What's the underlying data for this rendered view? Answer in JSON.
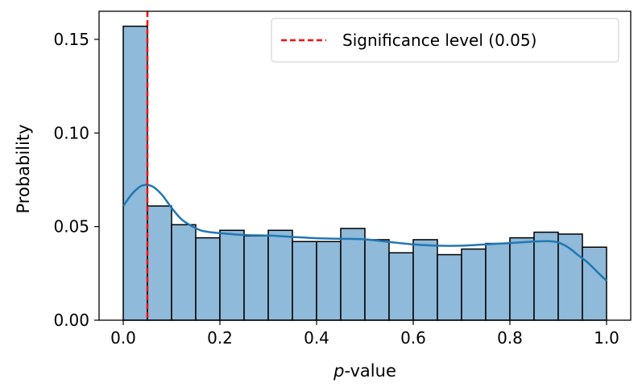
{
  "chart_data": {
    "type": "bar",
    "xlabel_prefix": "p",
    "xlabel_suffix": "-value",
    "ylabel": "Probability",
    "xlim": [
      -0.05,
      1.05
    ],
    "ylim": [
      0,
      0.165
    ],
    "xticks": [
      0.0,
      0.2,
      0.4,
      0.6,
      0.8,
      1.0
    ],
    "xtick_labels": [
      "0.0",
      "0.2",
      "0.4",
      "0.6",
      "0.8",
      "1.0"
    ],
    "yticks": [
      0.0,
      0.05,
      0.1,
      0.15
    ],
    "ytick_labels": [
      "0.00",
      "0.05",
      "0.10",
      "0.15"
    ],
    "bin_edges": [
      0.0,
      0.05,
      0.1,
      0.15,
      0.2,
      0.25,
      0.3,
      0.35,
      0.4,
      0.45,
      0.5,
      0.55,
      0.6,
      0.65,
      0.7,
      0.75,
      0.8,
      0.85,
      0.9,
      0.95,
      1.0
    ],
    "values": [
      0.157,
      0.061,
      0.051,
      0.044,
      0.048,
      0.045,
      0.048,
      0.042,
      0.042,
      0.049,
      0.043,
      0.036,
      0.043,
      0.035,
      0.038,
      0.041,
      0.044,
      0.047,
      0.046,
      0.039
    ],
    "kde": {
      "x": [
        0.0,
        0.02,
        0.04,
        0.06,
        0.08,
        0.1,
        0.12,
        0.14,
        0.16,
        0.18,
        0.2,
        0.25,
        0.3,
        0.35,
        0.4,
        0.45,
        0.5,
        0.55,
        0.6,
        0.65,
        0.7,
        0.75,
        0.8,
        0.85,
        0.88,
        0.9,
        0.92,
        0.94,
        0.96,
        0.98,
        1.0
      ],
      "y": [
        0.061,
        0.068,
        0.072,
        0.0715,
        0.067,
        0.06,
        0.054,
        0.0505,
        0.048,
        0.047,
        0.0465,
        0.0455,
        0.0452,
        0.0445,
        0.0438,
        0.0435,
        0.0432,
        0.0418,
        0.0405,
        0.0398,
        0.0398,
        0.0405,
        0.0412,
        0.042,
        0.0422,
        0.0415,
        0.039,
        0.035,
        0.031,
        0.026,
        0.021
      ]
    },
    "reference_line": {
      "x": 0.05,
      "label": "Significance level (0.05)",
      "color": "#ff0000",
      "style": "dashed"
    },
    "legend_position": "top-right",
    "bar_fill": "#8fbad9",
    "bar_edge": "#000000",
    "kde_color": "#2077b4",
    "grid": false
  }
}
